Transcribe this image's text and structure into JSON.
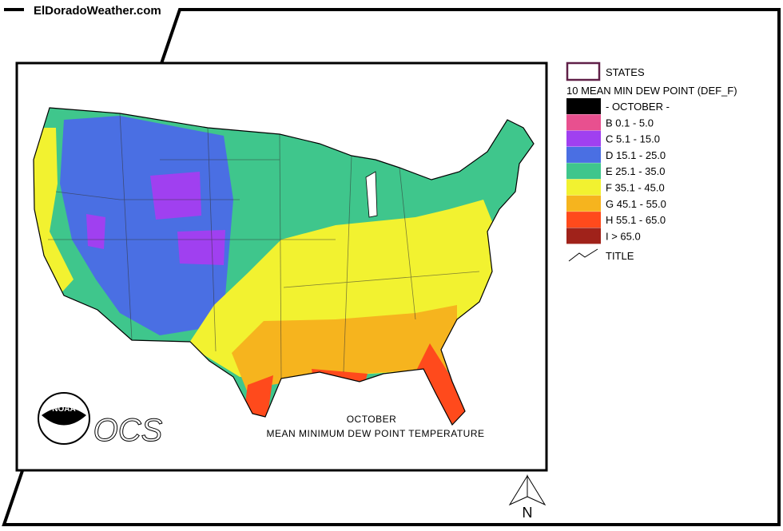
{
  "header": {
    "site": "ElDoradoWeather.com"
  },
  "map": {
    "title": "OCTOBER",
    "subtitle": "MEAN MINIMUM DEW POINT TEMPERATURE",
    "logo_text": "NOAA",
    "agency": "OCS",
    "north": "N"
  },
  "legend": {
    "states": "STATES",
    "heading": "10 MEAN MIN DEW POINT (DEF_F)",
    "items": [
      {
        "label": "- OCTOBER -",
        "color": "#000000"
      },
      {
        "label": "B 0.1 - 5.0",
        "color": "#e8508f"
      },
      {
        "label": "C 5.1 - 15.0",
        "color": "#a040f0"
      },
      {
        "label": "D 15.1 - 25.0",
        "color": "#4a6fe3"
      },
      {
        "label": "E 25.1 - 35.0",
        "color": "#3fc68c"
      },
      {
        "label": "F 35.1 - 45.0",
        "color": "#f2f230"
      },
      {
        "label": "G 45.1 - 55.0",
        "color": "#f6b41e"
      },
      {
        "label": "H 55.1 - 65.0",
        "color": "#ff4a1c"
      },
      {
        "label": "I > 65.0",
        "color": "#a0221a"
      }
    ],
    "title": "TITLE"
  }
}
